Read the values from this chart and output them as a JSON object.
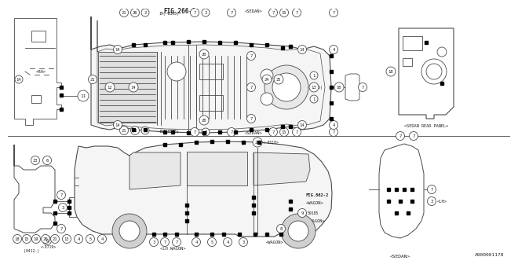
{
  "bg_color": "#ffffff",
  "line_color": "#4a4a4a",
  "text_color": "#222222",
  "part_number": "A900001178",
  "fig266": "FIG.266-2",
  "fig862": "FIG.862-2",
  "sedan_rear_panel": "<SEDAN REAR PANEL>",
  "rh_label": "<RH>",
  "sedan_label": "<SEDAN>",
  "sedan_label2": "<SEDAN>",
  "lh_wagon": "<LH WAGON>",
  "wagon_labels": [
    "<WAGON>",
    "<WAGON>",
    "<WAGON>"
  ],
  "lh_label": "<LH>",
  "note_19_0305": "19(-0305)",
  "note_19_0505": "19(-0505)",
  "note_13_0505": "13(-0505)",
  "note_d719": "<-D719>",
  "note_29_0510": "29<-0510>",
  "note_59185": "59185",
  "note_0412": "(0412-)",
  "note_wagon_59185": "<WAGON>",
  "note_lh_wagon2": "<LH WAGON>"
}
